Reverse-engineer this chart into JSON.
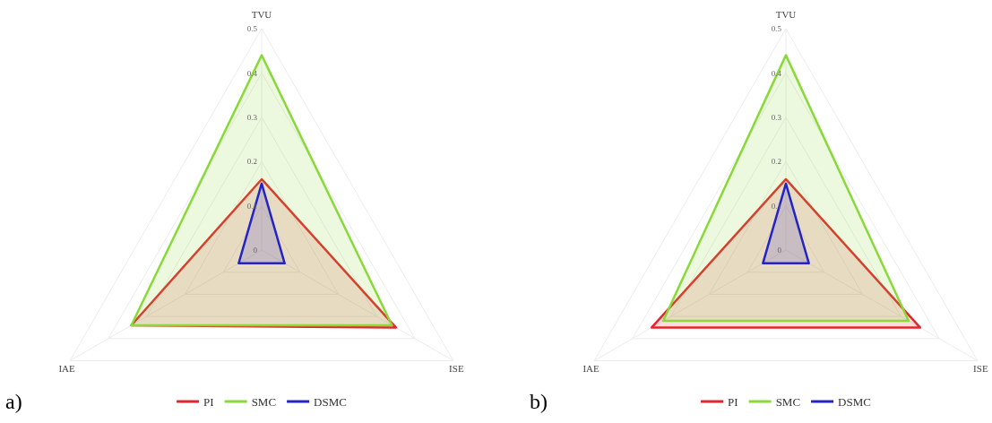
{
  "chart_data": [
    {
      "type": "radar",
      "title": "a)",
      "categories": [
        "TVU",
        "ISE",
        "IAE"
      ],
      "series": [
        {
          "name": "PI",
          "color": "#e3262d",
          "values": [
            0.16,
            0.35,
            0.34
          ]
        },
        {
          "name": "SMC",
          "color": "#8ad93a",
          "values": [
            0.44,
            0.34,
            0.34
          ]
        },
        {
          "name": "DSMC",
          "color": "#2424c4",
          "values": [
            0.15,
            0.06,
            0.06
          ]
        }
      ],
      "ylim": [
        0,
        0.5
      ],
      "yticks": [
        0,
        0.1,
        0.2,
        0.3,
        0.4,
        0.5
      ],
      "grid": true,
      "legend": "bottom"
    },
    {
      "type": "radar",
      "title": "b)",
      "categories": [
        "TVU",
        "ISE",
        "IAE"
      ],
      "series": [
        {
          "name": "PI",
          "color": "#e3262d",
          "values": [
            0.16,
            0.35,
            0.35
          ]
        },
        {
          "name": "SMC",
          "color": "#8ad93a",
          "values": [
            0.44,
            0.32,
            0.32
          ]
        },
        {
          "name": "DSMC",
          "color": "#2424c4",
          "values": [
            0.15,
            0.06,
            0.06
          ]
        }
      ],
      "ylim": [
        0,
        0.5
      ],
      "yticks": [
        0,
        0.1,
        0.2,
        0.3,
        0.4,
        0.5
      ],
      "grid": true,
      "legend": "bottom"
    }
  ]
}
